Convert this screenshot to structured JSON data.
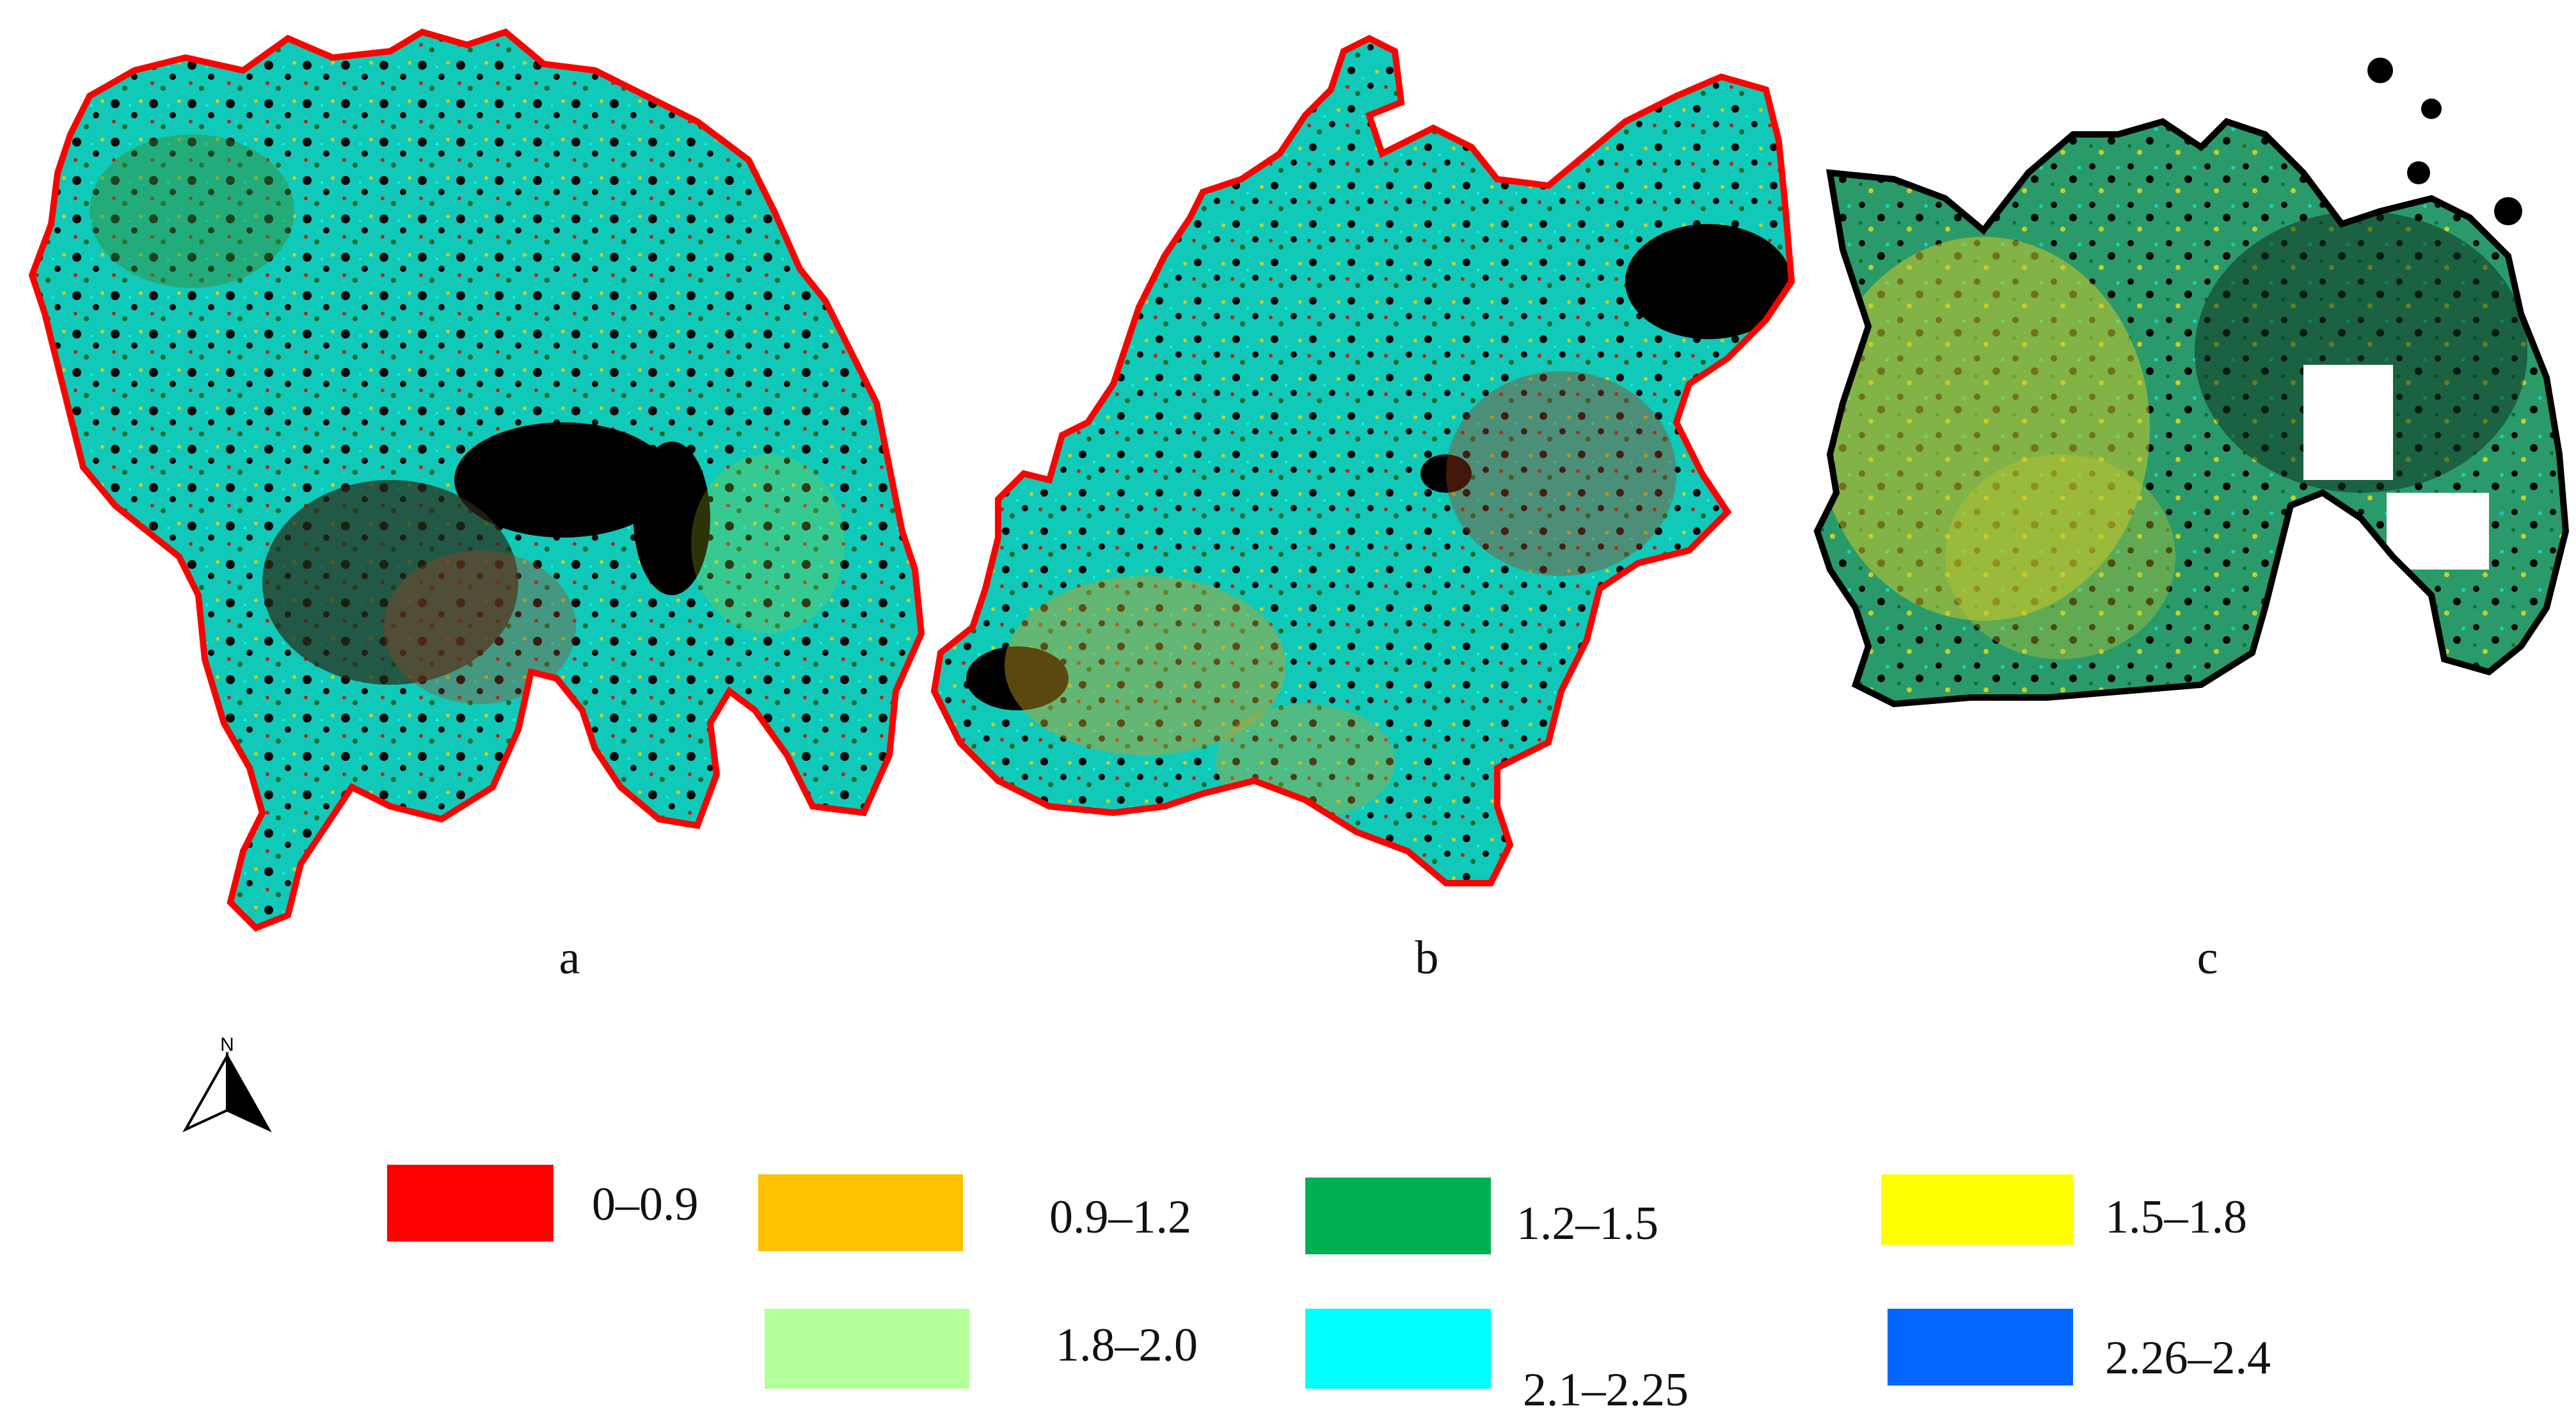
{
  "panels": [
    {
      "label": "a"
    },
    {
      "label": "b"
    },
    {
      "label": "c"
    }
  ],
  "north_arrow": {
    "letter": "N",
    "icon": "north-arrow-icon"
  },
  "legend": [
    {
      "range": "0–0.9",
      "color": "#ff0000"
    },
    {
      "range": "0.9–1.2",
      "color": "#ffc000"
    },
    {
      "range": "1.2–1.5",
      "color": "#00b050"
    },
    {
      "range": "1.5–1.8",
      "color": "#ffff00"
    },
    {
      "range": "1.8–2.0",
      "color": "#b3ff99"
    },
    {
      "range": "2.1–2.25",
      "color": "#00ffff"
    },
    {
      "range": "2.26–2.4",
      "color": "#0066ff"
    }
  ],
  "map_colors": {
    "cyan": "#00e6e0",
    "teal": "#1ab8a0",
    "green": "#22b04a",
    "yellow": "#d6d62a",
    "red": "#e31a1c",
    "dark": "#000000"
  }
}
